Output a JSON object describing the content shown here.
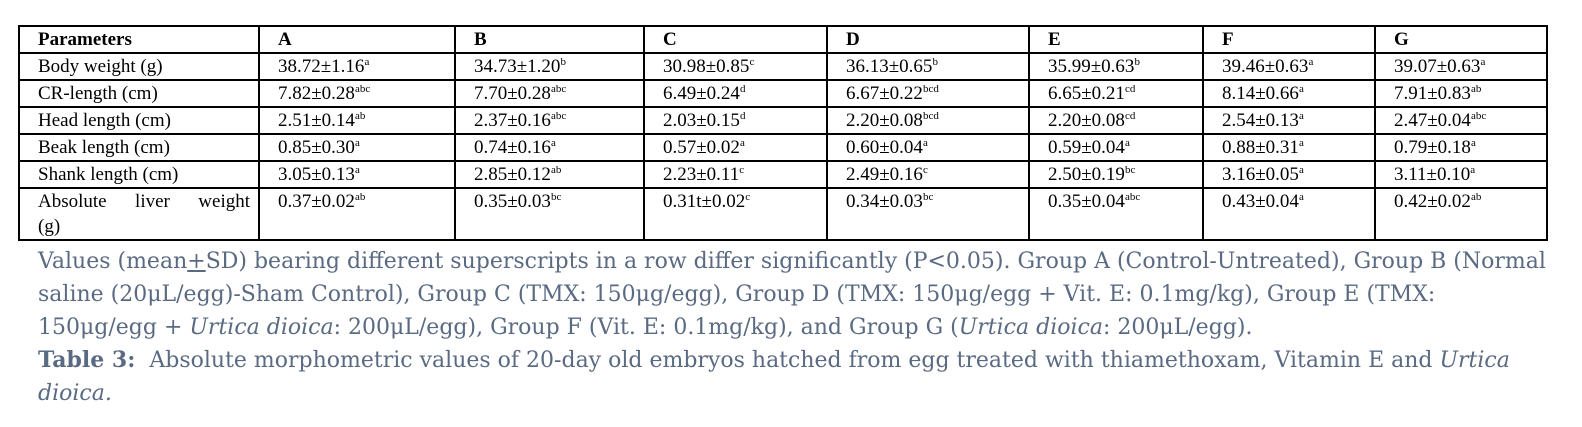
{
  "table": {
    "headers": [
      "Parameters",
      "A",
      "B",
      "C",
      "D",
      "E",
      "F",
      "G"
    ],
    "rows": [
      {
        "param": "Body weight (g)",
        "cells": [
          {
            "v": "38.72±1.16",
            "s": "a"
          },
          {
            "v": "34.73±1.20",
            "s": "b"
          },
          {
            "v": "30.98±0.85",
            "s": "c"
          },
          {
            "v": "36.13±0.65",
            "s": "b"
          },
          {
            "v": "35.99±0.63",
            "s": "b"
          },
          {
            "v": "39.46±0.63",
            "s": "a"
          },
          {
            "v": "39.07±0.63",
            "s": "a"
          }
        ]
      },
      {
        "param": "CR-length (cm)",
        "cells": [
          {
            "v": "7.82±0.28",
            "s": "abc"
          },
          {
            "v": "7.70±0.28",
            "s": "abc"
          },
          {
            "v": "6.49±0.24",
            "s": "d"
          },
          {
            "v": "6.67±0.22",
            "s": "bcd"
          },
          {
            "v": "6.65±0.21",
            "s": "cd"
          },
          {
            "v": "8.14±0.66",
            "s": "a"
          },
          {
            "v": "7.91±0.83",
            "s": "ab"
          }
        ]
      },
      {
        "param": "Head length (cm)",
        "cells": [
          {
            "v": "2.51±0.14",
            "s": "ab"
          },
          {
            "v": "2.37±0.16",
            "s": "abc"
          },
          {
            "v": "2.03±0.15",
            "s": "d"
          },
          {
            "v": "2.20±0.08",
            "s": "bcd"
          },
          {
            "v": "2.20±0.08",
            "s": "cd"
          },
          {
            "v": "2.54±0.13",
            "s": "a"
          },
          {
            "v": "2.47±0.04",
            "s": "abc"
          }
        ]
      },
      {
        "param": "Beak length (cm)",
        "cells": [
          {
            "v": "0.85±0.30",
            "s": "a"
          },
          {
            "v": "0.74±0.16",
            "s": "a"
          },
          {
            "v": "0.57±0.02",
            "s": "a"
          },
          {
            "v": "0.60±0.04",
            "s": "a"
          },
          {
            "v": "0.59±0.04",
            "s": "a"
          },
          {
            "v": "0.88±0.31",
            "s": "a"
          },
          {
            "v": "0.79±0.18",
            "s": "a"
          }
        ]
      },
      {
        "param": "Shank length (cm)",
        "cells": [
          {
            "v": "3.05±0.13",
            "s": "a"
          },
          {
            "v": "2.85±0.12",
            "s": "ab"
          },
          {
            "v": "2.23±0.11",
            "s": "c"
          },
          {
            "v": "2.49±0.16",
            "s": "c"
          },
          {
            "v": "2.50±0.19",
            "s": "bc"
          },
          {
            "v": "3.16±0.05",
            "s": "a"
          },
          {
            "v": "3.11±0.10",
            "s": "a"
          }
        ]
      },
      {
        "param_line1": "Absolute liver weight",
        "param_line2": "(g)",
        "cells": [
          {
            "v": "0.37±0.02",
            "s": "ab"
          },
          {
            "v": "0.35±0.03",
            "s": "bc"
          },
          {
            "v": "0.31t±0.02",
            "s": "c"
          },
          {
            "v": "0.34±0.03",
            "s": "bc"
          },
          {
            "v": "0.35±0.04",
            "s": "abc"
          },
          {
            "v": "0.43±0.04",
            "s": "a"
          },
          {
            "v": "0.42±0.02",
            "s": "ab"
          }
        ]
      }
    ]
  },
  "note": {
    "p1": "Values (mean",
    "pm": "+",
    "p2": "SD) bearing different superscripts in a row differ significantly (P<0.05). Group A (Control-Untreated), Group B (Normal saline (20μL/egg)-Sham Control), Group C (TMX: 150μg/egg), Group D (TMX: 150μg/egg + Vit. E: 0.1mg/kg), Group E (TMX: 150μg/egg + ",
    "i1": "Urtica dioica",
    "p3": ": 200μL/egg), Group F (Vit. E: 0.1mg/kg), and Group G (",
    "i2": "Urtica dioica",
    "p4": ": 200μL/egg)."
  },
  "caption": {
    "label": "Table 3:",
    "text": "  Absolute morphometric values of 20-day old embryos hatched from egg treated with thiamethoxam, Vitamin E and ",
    "italic": "Urtica dioica."
  }
}
